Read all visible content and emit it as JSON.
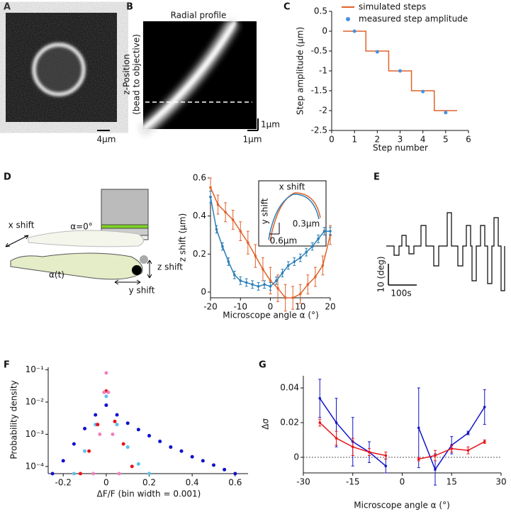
{
  "panel_labels": [
    "A",
    "B",
    "C",
    "D",
    "E",
    "F",
    "G"
  ],
  "panel_a": {
    "scale_bar": "4µm"
  },
  "panel_b": {
    "title": "Radial profile",
    "y_label": [
      "z-Position",
      "(bead to objective)"
    ],
    "scale_bar_vertical": "1µm",
    "scale_bar_horizontal": "1µm"
  },
  "panel_d_diagram": {
    "x_shift": "x shift",
    "alpha_zero": "α=0°",
    "z_shift": "z shift",
    "alpha_t": "α(t)",
    "y_shift": "y shift"
  },
  "panel_d_inset": {
    "title": "x shift",
    "y_label": "y shift",
    "scale_y": "0.3µm",
    "scale_x": "0.6µm"
  },
  "panel_e": {
    "scale_y": "10 (deg)",
    "scale_x": "100s"
  },
  "chart_data": [
    {
      "type": "line",
      "x_label": "Step number",
      "y_label": "Step amplitude (µm)",
      "xlim": [
        0,
        6
      ],
      "ylim": [
        -2.5,
        0.5
      ],
      "xticks": [
        0,
        1,
        2,
        3,
        4,
        5,
        6
      ],
      "yticks": [
        0.5,
        0,
        -0.5,
        -1,
        -1.5,
        -2,
        -2.5
      ],
      "legend": "upper right",
      "series": [
        {
          "name": "simulated steps",
          "color": "#e0622a",
          "mode": "line",
          "x": [
            0.5,
            1.5,
            1.5,
            2.5,
            2.5,
            3.5,
            3.5,
            4.5,
            4.5,
            5.5
          ],
          "values": [
            0,
            0,
            -0.5,
            -0.5,
            -1,
            -1,
            -1.5,
            -1.5,
            -2,
            -2
          ]
        },
        {
          "name": "measured step amplitude",
          "color": "#4a90e2",
          "mode": "markers",
          "x": [
            1,
            2,
            3,
            4,
            5
          ],
          "values": [
            0,
            -0.52,
            -1.0,
            -1.52,
            -2.05
          ]
        }
      ]
    },
    {
      "type": "line",
      "x_label": "Microscope angle α (°)",
      "y_label": "z shift (µm)",
      "xlim": [
        -20,
        20
      ],
      "ylim": [
        -0.03,
        0.6
      ],
      "xticks": [
        -20,
        -10,
        0,
        10,
        20
      ],
      "yticks": [
        0,
        0.2,
        0.4,
        0.6
      ],
      "series": [
        {
          "color": "#e0622a",
          "mode": "line",
          "markers": true,
          "x": [
            -20,
            -17.5,
            -15,
            -12.5,
            -10,
            -7.5,
            -5,
            -2.5,
            0,
            2.5,
            5,
            7.5,
            10,
            12.5,
            15,
            17.5,
            20
          ],
          "values": [
            0.55,
            0.46,
            0.42,
            0.38,
            0.32,
            0.26,
            0.19,
            0.12,
            0.06,
            0.02,
            -0.03,
            -0.03,
            -0.01,
            0.04,
            0.08,
            0.14,
            0.3
          ],
          "errors": [
            0.05,
            0.05,
            0.05,
            0.05,
            0.05,
            0.06,
            0.06,
            0.06,
            0.07,
            0.07,
            0.07,
            0.06,
            0.05,
            0.05,
            0.05,
            0.05,
            0.05
          ]
        },
        {
          "color": "#2a7fb8",
          "mode": "line",
          "markers": true,
          "x": [
            -20,
            -18,
            -16,
            -14,
            -12,
            -10,
            -8,
            -6,
            -4,
            -2,
            0,
            2,
            4,
            6,
            8,
            10,
            12,
            14,
            16,
            18,
            20
          ],
          "values": [
            0.5,
            0.33,
            0.24,
            0.16,
            0.09,
            0.06,
            0.05,
            0.04,
            0.03,
            0.04,
            0.03,
            0.06,
            0.1,
            0.14,
            0.16,
            0.18,
            0.21,
            0.24,
            0.28,
            0.32,
            0.32
          ],
          "errors": [
            0.03,
            0.02,
            0.02,
            0.02,
            0.02,
            0.02,
            0.02,
            0.02,
            0.02,
            0.02,
            0.02,
            0.02,
            0.02,
            0.02,
            0.02,
            0.02,
            0.02,
            0.02,
            0.02,
            0.02,
            0.02
          ]
        }
      ]
    },
    {
      "type": "scatter",
      "x_label": "ΔF/F (bin width = 0.001)",
      "y_label": "Probability density",
      "xlim": [
        -0.27,
        0.66
      ],
      "ylim": [
        6e-05,
        0.12
      ],
      "ylog": true,
      "xticks": [
        -0.2,
        0,
        0.2,
        0.4,
        0.6
      ],
      "yticks": [
        {
          "value": 0.1,
          "label": "10⁻¹"
        },
        {
          "value": 0.01,
          "label": "10⁻²"
        },
        {
          "value": 0.001,
          "label": "10⁻³"
        },
        {
          "value": 0.0001,
          "label": "10⁻⁴"
        }
      ],
      "series": [
        {
          "color": "#1010d0",
          "mode": "markers",
          "x": [
            -0.25,
            -0.2,
            -0.15,
            -0.1,
            -0.05,
            0,
            0.05,
            0.1,
            0.15,
            0.2,
            0.25,
            0.3,
            0.35,
            0.4,
            0.45,
            0.5,
            0.55,
            0.6
          ],
          "values": [
            6e-05,
            0.00015,
            0.0005,
            0.0015,
            0.004,
            0.008,
            0.004,
            0.0022,
            0.0014,
            0.0009,
            0.0006,
            0.0004,
            0.0003,
            0.0002,
            0.00015,
            0.00011,
            8e-05,
            6e-05
          ]
        },
        {
          "color": "#5bc0eb",
          "mode": "markers",
          "x": [
            -0.15,
            -0.1,
            -0.05,
            0,
            0.05,
            0.1,
            0.15,
            0.2
          ],
          "values": [
            6e-05,
            0.0003,
            0.002,
            0.015,
            0.002,
            0.0004,
            0.00012,
            6e-05
          ]
        },
        {
          "color": "#e8141c",
          "mode": "markers",
          "x": [
            -0.12,
            -0.08,
            -0.04,
            0,
            0.04,
            0.08,
            0.12
          ],
          "values": [
            6e-05,
            0.0003,
            0.002,
            0.022,
            0.0025,
            0.0005,
            0.0001
          ]
        },
        {
          "color": "#f080c0",
          "mode": "markers",
          "x": [
            -0.06,
            -0.03,
            -0.01,
            0,
            0.01,
            0.03,
            0.06
          ],
          "values": [
            6e-05,
            0.001,
            0.02,
            0.08,
            0.02,
            0.001,
            6e-05
          ]
        }
      ]
    },
    {
      "type": "line",
      "x_label": "Microscope angle α (°)",
      "y_label": "Δσ",
      "xlim": [
        -30,
        30
      ],
      "ylim": [
        -0.009,
        0.047
      ],
      "xticks": [
        -30,
        -15,
        0,
        15,
        30
      ],
      "yticks": [
        0,
        0.02,
        0.04
      ],
      "hline": 0,
      "series": [
        {
          "color": "#1414c8",
          "mode": "line",
          "markers": true,
          "x": [
            -25,
            -20,
            -15,
            -10,
            -5,
            0,
            5,
            10,
            15,
            20,
            25
          ],
          "values": [
            0.034,
            0.02,
            0.009,
            0.003,
            -0.005,
            null,
            0.017,
            -0.007,
            0.007,
            0.014,
            0.029
          ],
          "errors": [
            0.011,
            0.014,
            0.014,
            0.006,
            0.004,
            null,
            0.023,
            0.009,
            0.005,
            0.001,
            0.01
          ]
        },
        {
          "color": "#e8141c",
          "mode": "line",
          "markers": true,
          "x": [
            -25,
            -20,
            -15,
            -10,
            -5,
            0,
            5,
            10,
            15,
            20,
            25
          ],
          "values": [
            0.02,
            0.011,
            0.006,
            0.003,
            0.001,
            null,
            -0.001,
            0.001,
            0.005,
            0.004,
            0.009
          ],
          "errors": [
            0.002,
            0.004,
            0.005,
            0.002,
            0.002,
            null,
            0.001,
            0.003,
            0.002,
            0.002,
            0.001
          ]
        }
      ]
    }
  ]
}
